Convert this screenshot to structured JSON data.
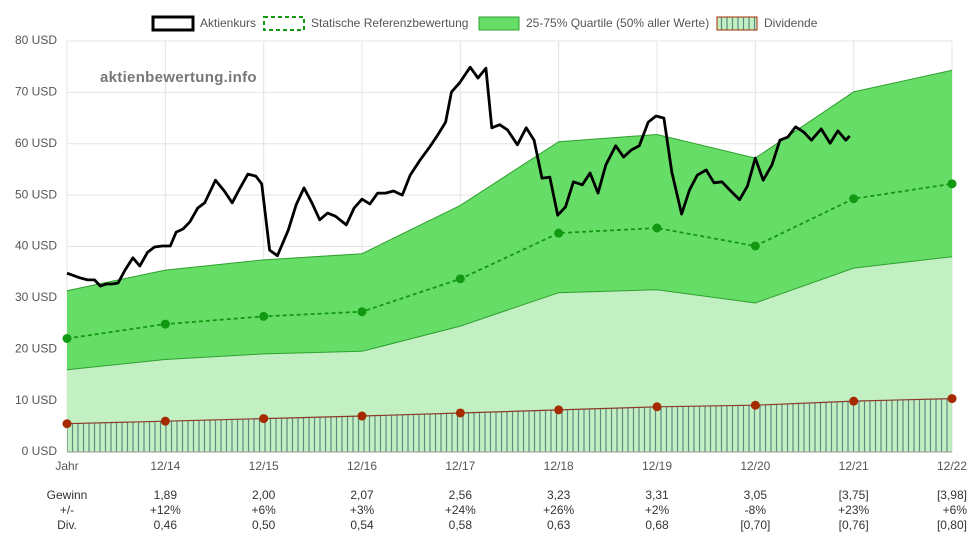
{
  "chart_data": {
    "type": "line",
    "watermark": "aktienbewertung.info",
    "categories": [
      "Jahr",
      "12/14",
      "12/15",
      "12/16",
      "12/17",
      "12/18",
      "12/19",
      "12/20",
      "12/21",
      "12/22"
    ],
    "xlim": [
      0,
      9
    ],
    "ylim": [
      0,
      80
    ],
    "yticks": [
      {
        "value": 0,
        "label": "0 USD"
      },
      {
        "value": 10,
        "label": "10 USD"
      },
      {
        "value": 20,
        "label": "20 USD"
      },
      {
        "value": 30,
        "label": "30 USD"
      },
      {
        "value": 40,
        "label": "40 USD"
      },
      {
        "value": 50,
        "label": "50 USD"
      },
      {
        "value": 60,
        "label": "60 USD"
      },
      {
        "value": 70,
        "label": "70 USD"
      },
      {
        "value": 80,
        "label": "80 USD"
      }
    ],
    "grid": true,
    "series": [
      {
        "name": "Aktienkurs",
        "color": "#000000",
        "x": [
          0,
          0.13,
          0.21,
          0.28,
          0.34,
          0.4,
          0.46,
          0.52,
          0.59,
          0.67,
          0.74,
          0.82,
          0.89,
          0.97,
          1.05,
          1.11,
          1.18,
          1.25,
          1.33,
          1.4,
          1.51,
          1.6,
          1.68,
          1.76,
          1.84,
          1.92,
          1.98,
          2.06,
          2.14,
          2.25,
          2.33,
          2.41,
          2.49,
          2.57,
          2.65,
          2.73,
          2.84,
          2.92,
          3.0,
          3.08,
          3.16,
          3.24,
          3.32,
          3.41,
          3.49,
          3.59,
          3.69,
          3.77,
          3.85,
          3.91,
          3.99,
          4.1,
          4.18,
          4.26,
          4.32,
          4.4,
          4.48,
          4.58,
          4.67,
          4.75,
          4.83,
          4.91,
          4.99,
          5.07,
          5.15,
          5.24,
          5.32,
          5.4,
          5.48,
          5.58,
          5.66,
          5.74,
          5.82,
          5.91,
          5.99,
          6.07,
          6.15,
          6.25,
          6.33,
          6.41,
          6.5,
          6.58,
          6.66,
          6.74,
          6.84,
          6.92,
          7.0,
          7.08,
          7.17,
          7.25,
          7.33,
          7.41,
          7.49,
          7.57,
          7.67,
          7.76,
          7.84,
          7.92,
          7.96
        ],
        "values": [
          34.8,
          33.9,
          33.5,
          33.5,
          32.3,
          32.7,
          32.7,
          32.9,
          35.4,
          37.8,
          36.2,
          38.9,
          39.9,
          40.1,
          40.1,
          42.8,
          43.4,
          44.8,
          47.5,
          48.5,
          52.9,
          50.8,
          48.5,
          51.4,
          54.1,
          53.7,
          52.2,
          39.3,
          38.2,
          43.2,
          48.1,
          51.4,
          48.5,
          45.2,
          46.5,
          45.9,
          44.2,
          47.5,
          49.2,
          48.3,
          50.4,
          50.4,
          50.8,
          50.0,
          53.9,
          56.8,
          59.4,
          61.7,
          64.2,
          70.1,
          71.8,
          74.9,
          72.8,
          74.7,
          63.1,
          63.7,
          62.7,
          59.8,
          63.1,
          60.7,
          53.3,
          53.5,
          46.1,
          47.7,
          52.6,
          52.0,
          54.3,
          50.4,
          55.9,
          59.6,
          57.4,
          58.8,
          59.6,
          64.2,
          65.4,
          65.0,
          54.5,
          46.3,
          51.0,
          53.9,
          54.9,
          52.4,
          52.6,
          51.0,
          49.1,
          51.8,
          57.2,
          52.9,
          55.9,
          60.7,
          61.3,
          63.3,
          62.3,
          60.7,
          62.9,
          60.1,
          62.5,
          60.7,
          61.5
        ]
      },
      {
        "name": "Statische Referenzbewertung",
        "color": "#119911",
        "values": [
          22.1,
          24.9,
          26.4,
          27.3,
          33.7,
          42.6,
          43.6,
          40.1,
          49.3,
          52.2
        ]
      },
      {
        "name": "25-75% Quartile (50% aller Werte)",
        "color": "#66dd66",
        "low": [
          16.0,
          18.0,
          19.1,
          19.6,
          24.5,
          31.0,
          31.6,
          29.0,
          35.8,
          38.0
        ],
        "high": [
          31.4,
          35.4,
          37.4,
          38.6,
          48.0,
          60.4,
          61.8,
          57.2,
          70.1,
          74.3
        ]
      },
      {
        "name": "Dividende",
        "color": "#a52a00",
        "values": [
          5.5,
          6.0,
          6.5,
          7.0,
          7.6,
          8.2,
          8.8,
          9.1,
          9.9,
          10.4
        ]
      }
    ],
    "table": {
      "rows": [
        {
          "label": "Gewinn",
          "cells": [
            "1,89",
            "2,00",
            "2,07",
            "2,56",
            "3,23",
            "3,31",
            "3,05",
            "[3,75]",
            "[3,98]"
          ]
        },
        {
          "label": "+/-",
          "cells": [
            "+12%",
            "+6%",
            "+3%",
            "+24%",
            "+26%",
            "+2%",
            "-8%",
            "+23%",
            "+6%"
          ]
        },
        {
          "label": "Div.",
          "cells": [
            "0,46",
            "0,50",
            "0,54",
            "0,58",
            "0,63",
            "0,68",
            "[0,70]",
            "[0,76]",
            "[0,80]"
          ]
        }
      ]
    }
  }
}
